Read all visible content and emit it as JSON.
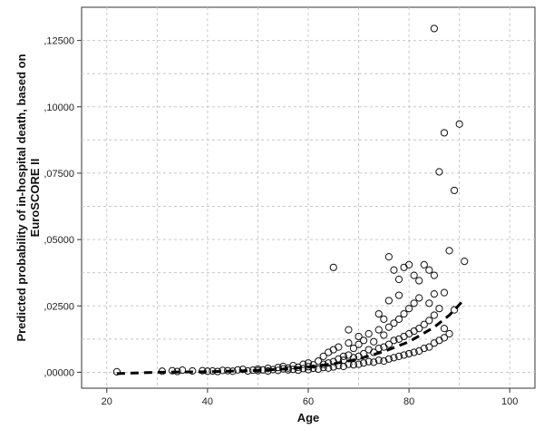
{
  "chart_data": {
    "type": "scatter",
    "xlabel": "Age",
    "ylabel_lines": [
      "Predicted probability of in-hospital death, based on",
      "EuroSCORE II"
    ],
    "xlim": [
      15,
      105
    ],
    "ylim": [
      -0.006,
      0.1375
    ],
    "x_ticks": [
      20,
      40,
      60,
      80,
      100
    ],
    "x_tick_labels": [
      "20",
      "40",
      "60",
      "80",
      "100"
    ],
    "y_ticks": [
      0,
      0.025,
      0.05,
      0.075,
      0.1,
      0.125
    ],
    "y_tick_labels": [
      ",00000",
      ",02500",
      ",05000",
      ",07500",
      ",10000",
      ",12500"
    ],
    "grid": true,
    "marker": "open-circle",
    "fit_line": {
      "style": "dashed",
      "color": "#000000",
      "points": [
        [
          22,
          -0.0005
        ],
        [
          30,
          0.0
        ],
        [
          40,
          0.0002
        ],
        [
          50,
          0.0007
        ],
        [
          55,
          0.0012
        ],
        [
          60,
          0.002
        ],
        [
          65,
          0.0032
        ],
        [
          70,
          0.005
        ],
        [
          75,
          0.0078
        ],
        [
          80,
          0.0115
        ],
        [
          85,
          0.017
        ],
        [
          88,
          0.0215
        ],
        [
          91,
          0.0275
        ]
      ]
    },
    "points": [
      [
        22,
        0.0002
      ],
      [
        31,
        0.0004
      ],
      [
        33,
        0.0006
      ],
      [
        34,
        0.0003
      ],
      [
        35,
        0.0008
      ],
      [
        37,
        0.0005
      ],
      [
        39,
        0.0006
      ],
      [
        40,
        0.0004
      ],
      [
        41,
        0.0005
      ],
      [
        42,
        0.0003
      ],
      [
        43,
        0.0007
      ],
      [
        44,
        0.0006
      ],
      [
        45,
        0.0004
      ],
      [
        46,
        0.0009
      ],
      [
        47,
        0.0011
      ],
      [
        48,
        0.0005
      ],
      [
        49,
        0.0008
      ],
      [
        50,
        0.0006
      ],
      [
        50,
        0.0012
      ],
      [
        51,
        0.0009
      ],
      [
        52,
        0.0015
      ],
      [
        52,
        0.0005
      ],
      [
        53,
        0.001
      ],
      [
        54,
        0.0018
      ],
      [
        54,
        0.0007
      ],
      [
        55,
        0.0013
      ],
      [
        55,
        0.0022
      ],
      [
        56,
        0.0009
      ],
      [
        56,
        0.0016
      ],
      [
        57,
        0.0011
      ],
      [
        57,
        0.0025
      ],
      [
        58,
        0.0008
      ],
      [
        58,
        0.0019
      ],
      [
        59,
        0.0014
      ],
      [
        59,
        0.003
      ],
      [
        60,
        0.001
      ],
      [
        60,
        0.0021
      ],
      [
        60,
        0.0035
      ],
      [
        61,
        0.0015
      ],
      [
        61,
        0.0028
      ],
      [
        62,
        0.0012
      ],
      [
        62,
        0.0042
      ],
      [
        63,
        0.0018
      ],
      [
        63,
        0.003
      ],
      [
        63,
        0.006
      ],
      [
        64,
        0.0016
      ],
      [
        64,
        0.0035
      ],
      [
        64,
        0.0075
      ],
      [
        65,
        0.002
      ],
      [
        65,
        0.004
      ],
      [
        65,
        0.0085
      ],
      [
        65,
        0.0395
      ],
      [
        66,
        0.0025
      ],
      [
        66,
        0.005
      ],
      [
        66,
        0.0095
      ],
      [
        67,
        0.0022
      ],
      [
        67,
        0.006
      ],
      [
        67,
        0.0045
      ],
      [
        68,
        0.003
      ],
      [
        68,
        0.0065
      ],
      [
        68,
        0.011
      ],
      [
        68,
        0.016
      ],
      [
        69,
        0.0028
      ],
      [
        69,
        0.0055
      ],
      [
        69,
        0.009
      ],
      [
        70,
        0.003
      ],
      [
        70,
        0.006
      ],
      [
        70,
        0.0105
      ],
      [
        70,
        0.0135
      ],
      [
        71,
        0.0035
      ],
      [
        71,
        0.007
      ],
      [
        71,
        0.012
      ],
      [
        72,
        0.004
      ],
      [
        72,
        0.0085
      ],
      [
        72,
        0.0145
      ],
      [
        73,
        0.0038
      ],
      [
        73,
        0.0075
      ],
      [
        73,
        0.0115
      ],
      [
        74,
        0.0045
      ],
      [
        74,
        0.009
      ],
      [
        74,
        0.016
      ],
      [
        74,
        0.022
      ],
      [
        75,
        0.0042
      ],
      [
        75,
        0.0095
      ],
      [
        75,
        0.014
      ],
      [
        75,
        0.02
      ],
      [
        76,
        0.005
      ],
      [
        76,
        0.0105
      ],
      [
        76,
        0.017
      ],
      [
        76,
        0.027
      ],
      [
        76,
        0.0435
      ],
      [
        77,
        0.0055
      ],
      [
        77,
        0.012
      ],
      [
        77,
        0.0185
      ],
      [
        77,
        0.0385
      ],
      [
        78,
        0.006
      ],
      [
        78,
        0.0125
      ],
      [
        78,
        0.02
      ],
      [
        78,
        0.029
      ],
      [
        78,
        0.035
      ],
      [
        79,
        0.0065
      ],
      [
        79,
        0.0135
      ],
      [
        79,
        0.022
      ],
      [
        79,
        0.0395
      ],
      [
        80,
        0.007
      ],
      [
        80,
        0.0145
      ],
      [
        80,
        0.024
      ],
      [
        80,
        0.0405
      ],
      [
        81,
        0.0075
      ],
      [
        81,
        0.0155
      ],
      [
        81,
        0.026
      ],
      [
        81,
        0.0365
      ],
      [
        82,
        0.008
      ],
      [
        82,
        0.0165
      ],
      [
        82,
        0.028
      ],
      [
        82,
        0.0345
      ],
      [
        83,
        0.009
      ],
      [
        83,
        0.018
      ],
      [
        83,
        0.0405
      ],
      [
        84,
        0.0095
      ],
      [
        84,
        0.0195
      ],
      [
        84,
        0.0385
      ],
      [
        84,
        0.026
      ],
      [
        85,
        0.011
      ],
      [
        85,
        0.0215
      ],
      [
        85,
        0.0295
      ],
      [
        85,
        0.0365
      ],
      [
        85,
        0.1295
      ],
      [
        86,
        0.012
      ],
      [
        86,
        0.024
      ],
      [
        86,
        0.0755
      ],
      [
        87,
        0.013
      ],
      [
        87,
        0.03
      ],
      [
        87,
        0.0165
      ],
      [
        87,
        0.0902
      ],
      [
        88,
        0.0145
      ],
      [
        88,
        0.0458
      ],
      [
        89,
        0.0685
      ],
      [
        89,
        0.0235
      ],
      [
        90,
        0.0935
      ],
      [
        91,
        0.0418
      ]
    ]
  }
}
